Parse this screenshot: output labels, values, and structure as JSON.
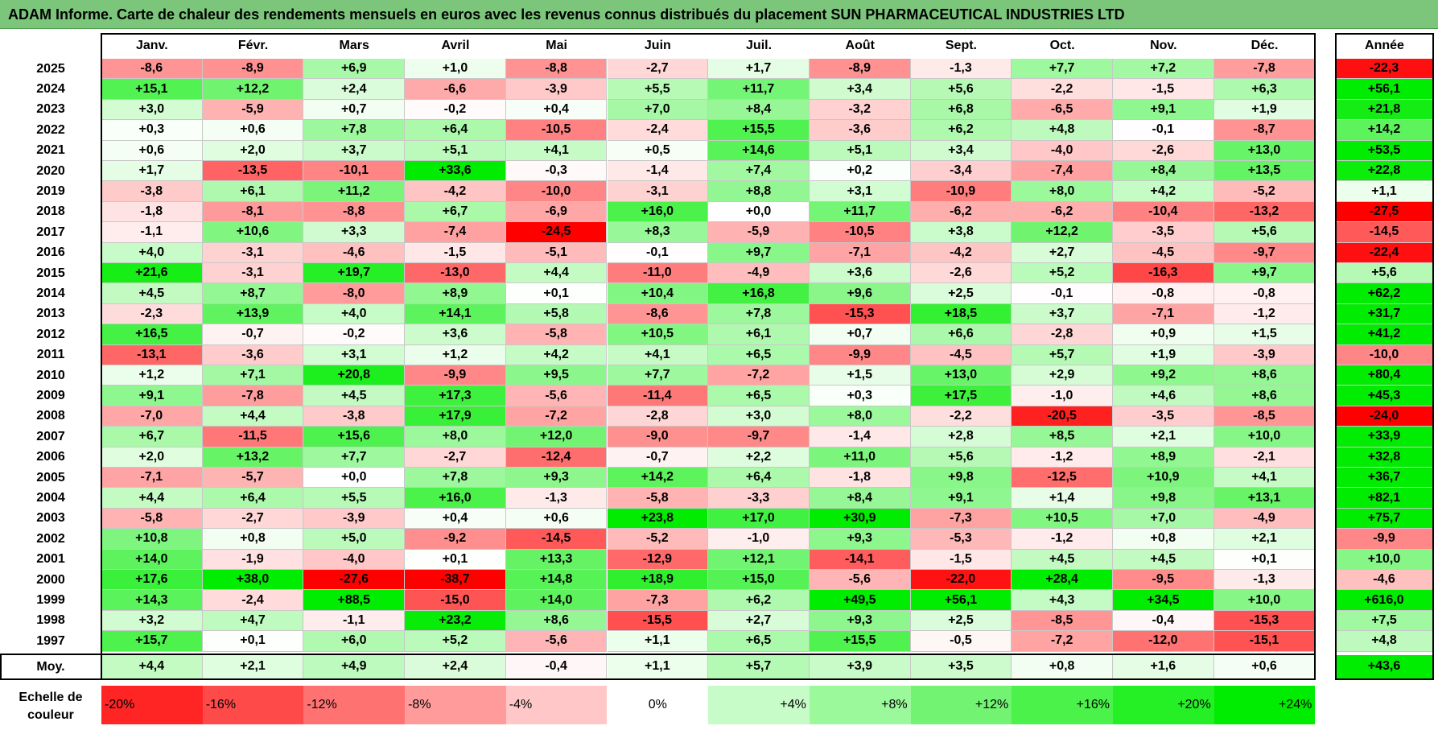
{
  "title": "ADAM Informe. Carte de chaleur des rendements mensuels en euros avec les revenus connus distribués du placement SUN PHARMACEUTICAL INDUSTRIES LTD",
  "chart_data": {
    "type": "heatmap",
    "title": "ADAM Informe. Carte de chaleur des rendements mensuels en euros avec les revenus connus distribués du placement SUN PHARMACEUTICAL INDUSTRIES LTD",
    "columns": [
      "Janv.",
      "Févr.",
      "Mars",
      "Avril",
      "Mai",
      "Juin",
      "Juil.",
      "Août",
      "Sept.",
      "Oct.",
      "Nov.",
      "Déc."
    ],
    "year_column_label": "Année",
    "rows": [
      {
        "year": "2025",
        "values": [
          "-8,6",
          "-8,9",
          "+6,9",
          "+1,0",
          "-8,8",
          "-2,7",
          "+1,7",
          "-8,9",
          "-1,3",
          "+7,7",
          "+7,2",
          "-7,8"
        ],
        "annual": "-22,3"
      },
      {
        "year": "2024",
        "values": [
          "+15,1",
          "+12,2",
          "+2,4",
          "-6,6",
          "-3,9",
          "+5,5",
          "+11,7",
          "+3,4",
          "+5,6",
          "-2,2",
          "-1,5",
          "+6,3"
        ],
        "annual": "+56,1"
      },
      {
        "year": "2023",
        "values": [
          "+3,0",
          "-5,9",
          "+0,7",
          "-0,2",
          "+0,4",
          "+7,0",
          "+8,4",
          "-3,2",
          "+6,8",
          "-6,5",
          "+9,1",
          "+1,9"
        ],
        "annual": "+21,8"
      },
      {
        "year": "2022",
        "values": [
          "+0,3",
          "+0,6",
          "+7,8",
          "+6,4",
          "-10,5",
          "-2,4",
          "+15,5",
          "-3,6",
          "+6,2",
          "+4,8",
          "-0,1",
          "-8,7"
        ],
        "annual": "+14,2"
      },
      {
        "year": "2021",
        "values": [
          "+0,6",
          "+2,0",
          "+3,7",
          "+5,1",
          "+4,1",
          "+0,5",
          "+14,6",
          "+5,1",
          "+3,4",
          "-4,0",
          "-2,6",
          "+13,0"
        ],
        "annual": "+53,5"
      },
      {
        "year": "2020",
        "values": [
          "+1,7",
          "-13,5",
          "-10,1",
          "+33,6",
          "-0,3",
          "-1,4",
          "+7,4",
          "+0,2",
          "-3,4",
          "-7,4",
          "+8,4",
          "+13,5"
        ],
        "annual": "+22,8"
      },
      {
        "year": "2019",
        "values": [
          "-3,8",
          "+6,1",
          "+11,2",
          "-4,2",
          "-10,0",
          "-3,1",
          "+8,8",
          "+3,1",
          "-10,9",
          "+8,0",
          "+4,2",
          "-5,2"
        ],
        "annual": "+1,1"
      },
      {
        "year": "2018",
        "values": [
          "-1,8",
          "-8,1",
          "-8,8",
          "+6,7",
          "-6,9",
          "+16,0",
          "+0,0",
          "+11,7",
          "-6,2",
          "-6,2",
          "-10,4",
          "-13,2"
        ],
        "annual": "-27,5"
      },
      {
        "year": "2017",
        "values": [
          "-1,1",
          "+10,6",
          "+3,3",
          "-7,4",
          "-24,5",
          "+8,3",
          "-5,9",
          "-10,5",
          "+3,8",
          "+12,2",
          "-3,5",
          "+5,6"
        ],
        "annual": "-14,5"
      },
      {
        "year": "2016",
        "values": [
          "+4,0",
          "-3,1",
          "-4,6",
          "-1,5",
          "-5,1",
          "-0,1",
          "+9,7",
          "-7,1",
          "-4,2",
          "+2,7",
          "-4,5",
          "-9,7"
        ],
        "annual": "-22,4"
      },
      {
        "year": "2015",
        "values": [
          "+21,6",
          "-3,1",
          "+19,7",
          "-13,0",
          "+4,4",
          "-11,0",
          "-4,9",
          "+3,6",
          "-2,6",
          "+5,2",
          "-16,3",
          "+9,7"
        ],
        "annual": "+5,6"
      },
      {
        "year": "2014",
        "values": [
          "+4,5",
          "+8,7",
          "-8,0",
          "+8,9",
          "+0,1",
          "+10,4",
          "+16,8",
          "+9,6",
          "+2,5",
          "-0,1",
          "-0,8",
          "-0,8"
        ],
        "annual": "+62,2"
      },
      {
        "year": "2013",
        "values": [
          "-2,3",
          "+13,9",
          "+4,0",
          "+14,1",
          "+5,8",
          "-8,6",
          "+7,8",
          "-15,3",
          "+18,5",
          "+3,7",
          "-7,1",
          "-1,2"
        ],
        "annual": "+31,7"
      },
      {
        "year": "2012",
        "values": [
          "+16,5",
          "-0,7",
          "-0,2",
          "+3,6",
          "-5,8",
          "+10,5",
          "+6,1",
          "+0,7",
          "+6,6",
          "-2,8",
          "+0,9",
          "+1,5"
        ],
        "annual": "+41,2"
      },
      {
        "year": "2011",
        "values": [
          "-13,1",
          "-3,6",
          "+3,1",
          "+1,2",
          "+4,2",
          "+4,1",
          "+6,5",
          "-9,9",
          "-4,5",
          "+5,7",
          "+1,9",
          "-3,9"
        ],
        "annual": "-10,0"
      },
      {
        "year": "2010",
        "values": [
          "+1,2",
          "+7,1",
          "+20,8",
          "-9,9",
          "+9,5",
          "+7,7",
          "-7,2",
          "+1,5",
          "+13,0",
          "+2,9",
          "+9,2",
          "+8,6"
        ],
        "annual": "+80,4"
      },
      {
        "year": "2009",
        "values": [
          "+9,1",
          "-7,8",
          "+4,5",
          "+17,3",
          "-5,6",
          "-11,4",
          "+6,5",
          "+0,3",
          "+17,5",
          "-1,0",
          "+4,6",
          "+8,6"
        ],
        "annual": "+45,3"
      },
      {
        "year": "2008",
        "values": [
          "-7,0",
          "+4,4",
          "-3,8",
          "+17,9",
          "-7,2",
          "-2,8",
          "+3,0",
          "+8,0",
          "-2,2",
          "-20,5",
          "-3,5",
          "-8,5"
        ],
        "annual": "-24,0"
      },
      {
        "year": "2007",
        "values": [
          "+6,7",
          "-11,5",
          "+15,6",
          "+8,0",
          "+12,0",
          "-9,0",
          "-9,7",
          "-1,4",
          "+2,8",
          "+8,5",
          "+2,1",
          "+10,0"
        ],
        "annual": "+33,9"
      },
      {
        "year": "2006",
        "values": [
          "+2,0",
          "+13,2",
          "+7,7",
          "-2,7",
          "-12,4",
          "-0,7",
          "+2,2",
          "+11,0",
          "+5,6",
          "-1,2",
          "+8,9",
          "-2,1"
        ],
        "annual": "+32,8"
      },
      {
        "year": "2005",
        "values": [
          "-7,1",
          "-5,7",
          "+0,0",
          "+7,8",
          "+9,3",
          "+14,2",
          "+6,4",
          "-1,8",
          "+9,8",
          "-12,5",
          "+10,9",
          "+4,1"
        ],
        "annual": "+36,7"
      },
      {
        "year": "2004",
        "values": [
          "+4,4",
          "+6,4",
          "+5,5",
          "+16,0",
          "-1,3",
          "-5,8",
          "-3,3",
          "+8,4",
          "+9,1",
          "+1,4",
          "+9,8",
          "+13,1"
        ],
        "annual": "+82,1"
      },
      {
        "year": "2003",
        "values": [
          "-5,8",
          "-2,7",
          "-3,9",
          "+0,4",
          "+0,6",
          "+23,8",
          "+17,0",
          "+30,9",
          "-7,3",
          "+10,5",
          "+7,0",
          "-4,9"
        ],
        "annual": "+75,7"
      },
      {
        "year": "2002",
        "values": [
          "+10,8",
          "+0,8",
          "+5,0",
          "-9,2",
          "-14,5",
          "-5,2",
          "-1,0",
          "+9,3",
          "-5,3",
          "-1,2",
          "+0,8",
          "+2,1"
        ],
        "annual": "-9,9"
      },
      {
        "year": "2001",
        "values": [
          "+14,0",
          "-1,9",
          "-4,0",
          "+0,1",
          "+13,3",
          "-12,9",
          "+12,1",
          "-14,1",
          "-1,5",
          "+4,5",
          "+4,5",
          "+0,1"
        ],
        "annual": "+10,0"
      },
      {
        "year": "2000",
        "values": [
          "+17,6",
          "+38,0",
          "-27,6",
          "-38,7",
          "+14,8",
          "+18,9",
          "+15,0",
          "-5,6",
          "-22,0",
          "+28,4",
          "-9,5",
          "-1,3"
        ],
        "annual": "-4,6"
      },
      {
        "year": "1999",
        "values": [
          "+14,3",
          "-2,4",
          "+88,5",
          "-15,0",
          "+14,0",
          "-7,3",
          "+6,2",
          "+49,5",
          "+56,1",
          "+4,3",
          "+34,5",
          "+10,0"
        ],
        "annual": "+616,0"
      },
      {
        "year": "1998",
        "values": [
          "+3,2",
          "+4,7",
          "-1,1",
          "+23,2",
          "+8,6",
          "-15,5",
          "+2,7",
          "+9,3",
          "+2,5",
          "-8,5",
          "-0,4",
          "-15,3"
        ],
        "annual": "+7,5"
      },
      {
        "year": "1997",
        "values": [
          "+15,7",
          "+0,1",
          "+6,0",
          "+5,2",
          "-5,6",
          "+1,1",
          "+6,5",
          "+15,5",
          "-0,5",
          "-7,2",
          "-12,0",
          "-15,1"
        ],
        "annual": "+4,8"
      }
    ],
    "average": {
      "label": "Moy.",
      "values": [
        "+4,4",
        "+2,1",
        "+4,9",
        "+2,4",
        "-0,4",
        "+1,1",
        "+5,7",
        "+3,9",
        "+3,5",
        "+0,8",
        "+1,6",
        "+0,6"
      ],
      "annual": "+43,6"
    },
    "scale": {
      "label": "Echelle de couleur",
      "stops": [
        {
          "text": "-20%",
          "value": -20
        },
        {
          "text": "-16%",
          "value": -16
        },
        {
          "text": "-12%",
          "value": -12
        },
        {
          "text": "-8%",
          "value": -8
        },
        {
          "text": "-4%",
          "value": -4
        },
        {
          "text": "0%",
          "value": 0
        },
        {
          "text": "+4%",
          "value": 4
        },
        {
          "text": "+8%",
          "value": 8
        },
        {
          "text": "+12%",
          "value": 12
        },
        {
          "text": "+16%",
          "value": 16
        },
        {
          "text": "+20%",
          "value": 20
        },
        {
          "text": "+24%",
          "value": 24
        }
      ]
    },
    "colors": {
      "negative_max": "#ff0000",
      "neutral": "#ffffff",
      "positive_max": "#00ee00"
    }
  }
}
